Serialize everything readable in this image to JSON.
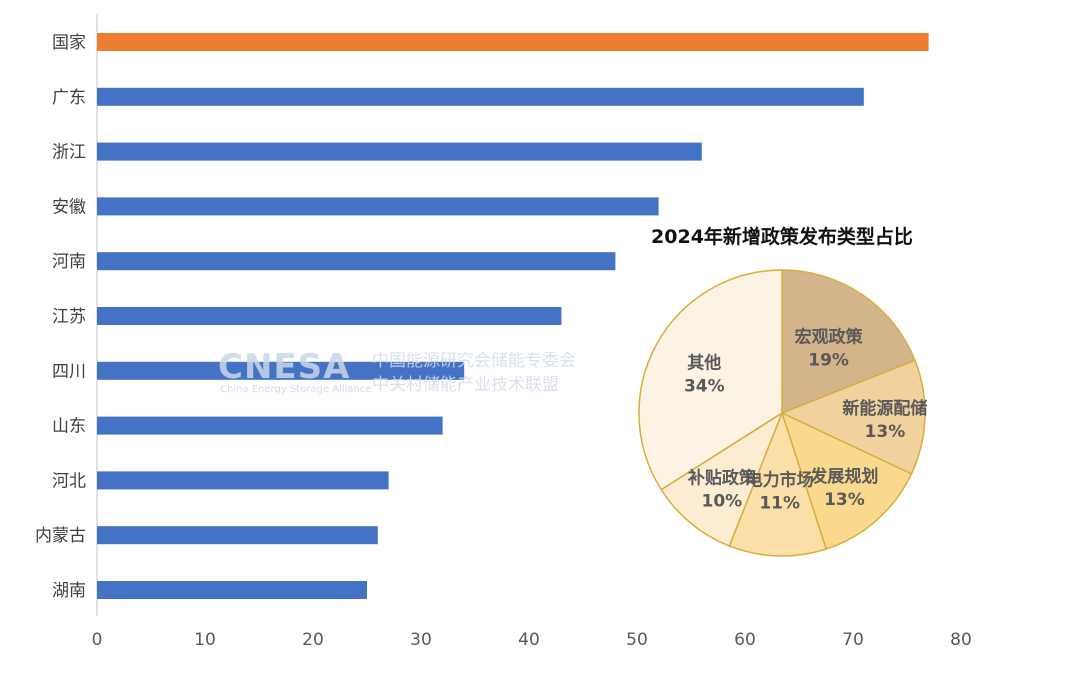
{
  "chart_data": [
    {
      "type": "bar",
      "orientation": "horizontal",
      "categories": [
        "国家",
        "广东",
        "浙江",
        "安徽",
        "河南",
        "江苏",
        "四川",
        "山东",
        "河北",
        "内蒙古",
        "湖南"
      ],
      "values": [
        77,
        71,
        56,
        52,
        48,
        43,
        34,
        32,
        27,
        26,
        25
      ],
      "highlight_index": 0,
      "colors": {
        "default": "#4472c4",
        "highlight": "#ed7d31"
      },
      "xlim": [
        0,
        80
      ],
      "xticks": [
        "0",
        "10",
        "20",
        "30",
        "40",
        "50",
        "60",
        "70",
        "80"
      ],
      "title": "",
      "xlabel": "",
      "ylabel": ""
    },
    {
      "type": "pie",
      "title": "2024年新增政策发布类型占比",
      "slices": [
        {
          "label": "宏观政策",
          "value": 19,
          "value_label": "19%",
          "color": "#d4b48a"
        },
        {
          "label": "新能源配储",
          "value": 13,
          "value_label": "13%",
          "color": "#f1d29e"
        },
        {
          "label": "发展规划",
          "value": 13,
          "value_label": "13%",
          "color": "#f8d98d"
        },
        {
          "label": "电力市场",
          "value": 11,
          "value_label": "11%",
          "color": "#fae0a8"
        },
        {
          "label": "补贴政策",
          "value": 10,
          "value_label": "10%",
          "color": "#fbecd2"
        },
        {
          "label": "其他",
          "value": 34,
          "value_label": "34%",
          "color": "#fdf3e4"
        }
      ],
      "edge_color": "#d9ad3c"
    }
  ],
  "watermark": {
    "logo": "CNESA",
    "sub": "China Energy Storage Alliance",
    "cn_line1": "中国能源研究会储能专委会",
    "cn_line2": "中关村储能产业技术联盟"
  }
}
